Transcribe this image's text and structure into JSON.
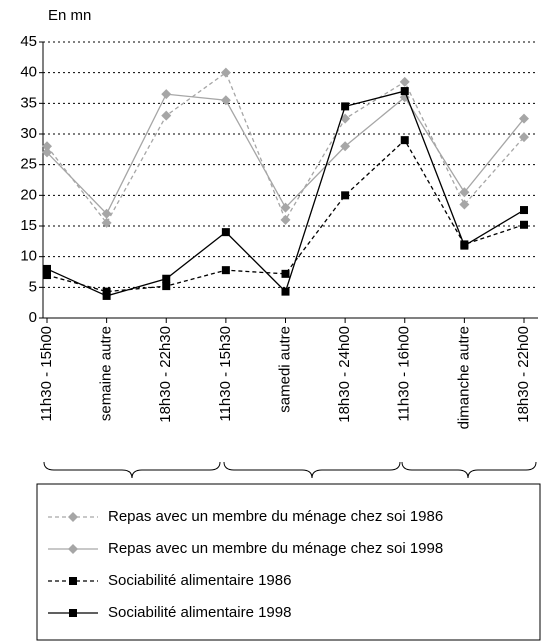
{
  "chart_data": {
    "type": "line",
    "ylabel": "En mn",
    "categories": [
      "11h30 - 15h00",
      "semaine autre",
      "18h30 - 22h30",
      "11h30 - 15h30",
      "samedi autre",
      "18h30 - 24h00",
      "11h30 - 16h00",
      "dimanche autre",
      "18h30 - 22h00"
    ],
    "ylim": [
      0,
      45
    ],
    "yticks": [
      0,
      5,
      10,
      15,
      20,
      25,
      30,
      35,
      40,
      45
    ],
    "grid": true,
    "legend": "bottom",
    "series": [
      {
        "name": "Repas avec un membre du ménage chez soi 1986",
        "color": "#a6a6a6",
        "style": "dashed",
        "marker": "diamond",
        "values": [
          28,
          15.5,
          33,
          40,
          16,
          32.5,
          38.5,
          18.5,
          29.5
        ]
      },
      {
        "name": "Repas avec un membre du ménage chez soi 1998",
        "color": "#a6a6a6",
        "style": "solid",
        "marker": "diamond",
        "values": [
          27,
          17,
          36.5,
          35.5,
          18,
          28,
          36,
          20.5,
          32.5
        ]
      },
      {
        "name": "Sociabilité alimentaire 1986",
        "color": "#000000",
        "style": "dashed",
        "marker": "square",
        "values": [
          7,
          4.3,
          5.2,
          7.8,
          7.2,
          20,
          29,
          12,
          15.2
        ]
      },
      {
        "name": "Sociabilité alimentaire 1998",
        "color": "#000000",
        "style": "solid",
        "marker": "square",
        "values": [
          8,
          3.6,
          6.4,
          14,
          4.3,
          34.5,
          37,
          11.8,
          17.6
        ]
      }
    ]
  }
}
